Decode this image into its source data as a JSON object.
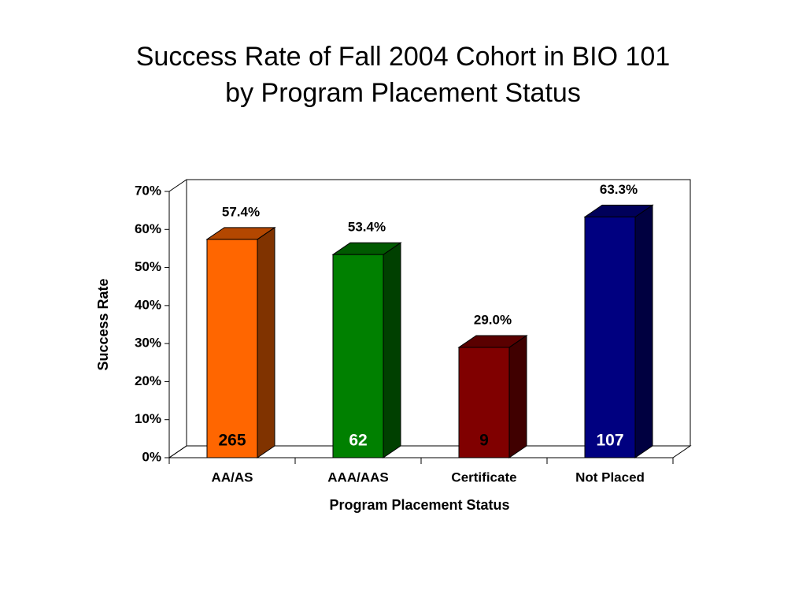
{
  "chart_data": {
    "type": "bar3d",
    "title": [
      "Success Rate of Fall 2004 Cohort in BIO 101",
      "by Program Placement Status"
    ],
    "x_label": "Program Placement Status",
    "y_label": "Success Rate",
    "categories": [
      "AA/AS",
      "AAA/AAS",
      "Certificate",
      "Not Placed"
    ],
    "values": [
      57.4,
      53.4,
      29.0,
      63.3
    ],
    "value_labels": [
      "57.4%",
      "53.4%",
      "29.0%",
      "63.3%"
    ],
    "counts": [
      265,
      62,
      9,
      107
    ],
    "colors": [
      "#ff6600",
      "#008000",
      "#800000",
      "#000080"
    ],
    "count_colors": [
      "#000000",
      "#ffffff",
      "#000000",
      "#ffffff"
    ],
    "ylim": [
      0,
      70
    ],
    "yticks": [
      {
        "value": 0,
        "label": "0%"
      },
      {
        "value": 10,
        "label": "10%"
      },
      {
        "value": 20,
        "label": "20%"
      },
      {
        "value": 30,
        "label": "30%"
      },
      {
        "value": 40,
        "label": "40%"
      },
      {
        "value": 50,
        "label": "50%"
      },
      {
        "value": 60,
        "label": "60%"
      },
      {
        "value": 70,
        "label": "70%"
      }
    ],
    "grid": false
  }
}
